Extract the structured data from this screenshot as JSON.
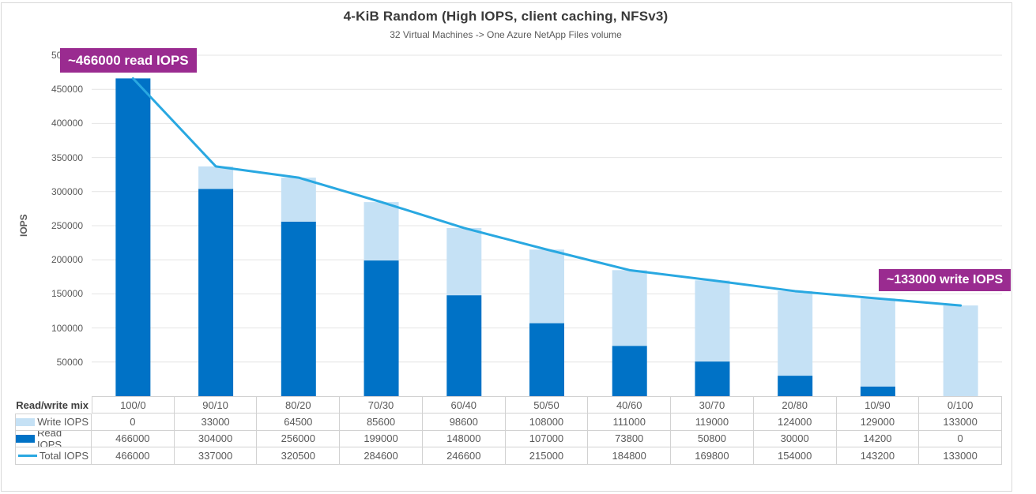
{
  "colors": {
    "read_bar": "#0072C6",
    "write_bar": "#C5E1F5",
    "total_line": "#29A8E1",
    "annotation_bg": "#9A2B90",
    "gridline": "#E4E4E4",
    "table_border": "#D2D2D2",
    "frame_border": "#D9D9D9",
    "title_text": "#3A3A3A",
    "body_text": "#595959"
  },
  "chart_data": {
    "type": "bar",
    "stacked": true,
    "title": "4-KiB Random (High IOPS, client caching, NFSv3)",
    "subtitle": "32 Virtual Machines -> One Azure NetApp Files volume",
    "xlabel": "Read/write mix",
    "ylabel": "IOPS",
    "ylim": [
      0,
      500000
    ],
    "ytick_step": 50000,
    "grid": "horizontal",
    "legend_position": "data-table-left",
    "categories": [
      "100/0",
      "90/10",
      "80/20",
      "70/30",
      "60/40",
      "50/50",
      "40/60",
      "30/70",
      "20/80",
      "10/90",
      "0/100"
    ],
    "series": [
      {
        "name": "Write IOPS",
        "type": "bar",
        "stack_index": 1,
        "color": "#C5E1F5",
        "values": [
          0,
          33000,
          64500,
          85600,
          98600,
          108000,
          111000,
          119000,
          124000,
          129000,
          133000
        ]
      },
      {
        "name": "Read IOPS",
        "type": "bar",
        "stack_index": 0,
        "color": "#0072C6",
        "values": [
          466000,
          304000,
          256000,
          199000,
          148000,
          107000,
          73800,
          50800,
          30000,
          14200,
          0
        ]
      },
      {
        "name": "Total IOPS",
        "type": "line",
        "color": "#29A8E1",
        "values": [
          466000,
          337000,
          320500,
          284600,
          246600,
          215000,
          184800,
          169800,
          154000,
          143200,
          133000
        ]
      }
    ],
    "annotations": [
      {
        "id": "read-peak",
        "text": "~466000 read IOPS"
      },
      {
        "id": "write-peak",
        "text": "~133000 write IOPS"
      }
    ]
  }
}
